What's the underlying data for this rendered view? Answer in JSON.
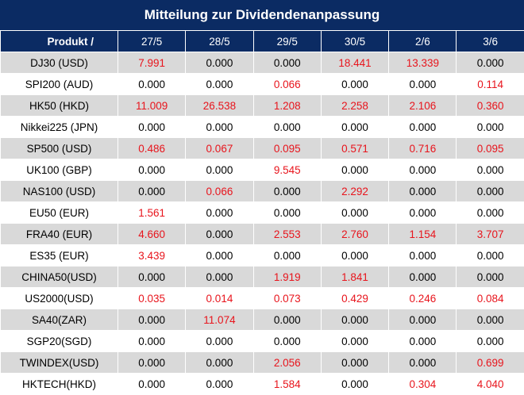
{
  "title": "Mitteilung zur Dividendenanpassung",
  "colors": {
    "header_bg": "#0b2b63",
    "positive_value": "#e8141c",
    "zero_value": "#000000",
    "row_shade": "#d9d9d9"
  },
  "columns": [
    "Produkt /",
    "27/5",
    "28/5",
    "29/5",
    "30/5",
    "2/6",
    "3/6"
  ],
  "rows": [
    {
      "product": "DJ30 (USD)",
      "values": [
        "7.991",
        "0.000",
        "0.000",
        "18.441",
        "13.339",
        "0.000"
      ]
    },
    {
      "product": "SPI200 (AUD)",
      "values": [
        "0.000",
        "0.000",
        "0.066",
        "0.000",
        "0.000",
        "0.114"
      ]
    },
    {
      "product": "HK50 (HKD)",
      "values": [
        "11.009",
        "26.538",
        "1.208",
        "2.258",
        "2.106",
        "0.360"
      ]
    },
    {
      "product": "Nikkei225 (JPN)",
      "values": [
        "0.000",
        "0.000",
        "0.000",
        "0.000",
        "0.000",
        "0.000"
      ]
    },
    {
      "product": "SP500 (USD)",
      "values": [
        "0.486",
        "0.067",
        "0.095",
        "0.571",
        "0.716",
        "0.095"
      ]
    },
    {
      "product": "UK100 (GBP)",
      "values": [
        "0.000",
        "0.000",
        "9.545",
        "0.000",
        "0.000",
        "0.000"
      ]
    },
    {
      "product": "NAS100 (USD)",
      "values": [
        "0.000",
        "0.066",
        "0.000",
        "2.292",
        "0.000",
        "0.000"
      ]
    },
    {
      "product": "EU50 (EUR)",
      "values": [
        "1.561",
        "0.000",
        "0.000",
        "0.000",
        "0.000",
        "0.000"
      ]
    },
    {
      "product": "FRA40 (EUR)",
      "values": [
        "4.660",
        "0.000",
        "2.553",
        "2.760",
        "1.154",
        "3.707"
      ]
    },
    {
      "product": "ES35 (EUR)",
      "values": [
        "3.439",
        "0.000",
        "0.000",
        "0.000",
        "0.000",
        "0.000"
      ]
    },
    {
      "product": "CHINA50(USD)",
      "values": [
        "0.000",
        "0.000",
        "1.919",
        "1.841",
        "0.000",
        "0.000"
      ]
    },
    {
      "product": "US2000(USD)",
      "values": [
        "0.035",
        "0.014",
        "0.073",
        "0.429",
        "0.246",
        "0.084"
      ]
    },
    {
      "product": "SA40(ZAR)",
      "values": [
        "0.000",
        "11.074",
        "0.000",
        "0.000",
        "0.000",
        "0.000"
      ]
    },
    {
      "product": "SGP20(SGD)",
      "values": [
        "0.000",
        "0.000",
        "0.000",
        "0.000",
        "0.000",
        "0.000"
      ]
    },
    {
      "product": "TWINDEX(USD)",
      "values": [
        "0.000",
        "0.000",
        "2.056",
        "0.000",
        "0.000",
        "0.699"
      ]
    },
    {
      "product": "HKTECH(HKD)",
      "values": [
        "0.000",
        "0.000",
        "1.584",
        "0.000",
        "0.304",
        "4.040"
      ]
    }
  ]
}
